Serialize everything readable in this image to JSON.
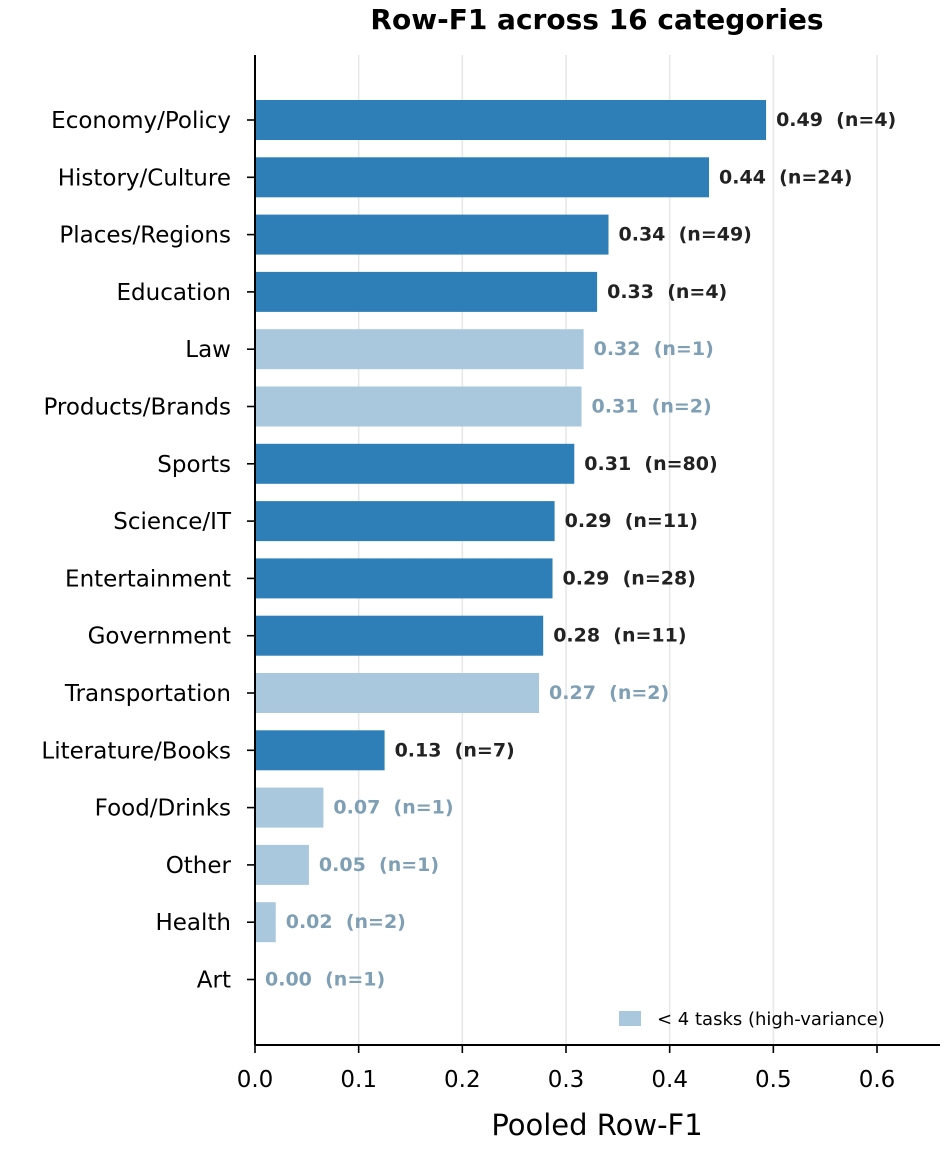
{
  "chart_data": {
    "type": "bar",
    "orientation": "horizontal",
    "title": "Row-F1 across 16 categories",
    "xlabel": "Pooled Row-F1",
    "ylabel": "",
    "xlim": [
      0,
      0.66
    ],
    "xticks": [
      "0.0",
      "0.1",
      "0.2",
      "0.3",
      "0.4",
      "0.5",
      "0.6"
    ],
    "grid": "vertical",
    "legend": {
      "placement": "bottom-right",
      "label": "< 4 tasks (high-variance)"
    },
    "colors": {
      "normal": "#2e7fb8",
      "high_variance": "#a9c8dd",
      "label_normal": "#222222",
      "label_high_variance": "#7f9fb5"
    },
    "categories": [
      "Economy/Policy",
      "History/Culture",
      "Places/Regions",
      "Education",
      "Law",
      "Products/Brands",
      "Sports",
      "Science/IT",
      "Entertainment",
      "Government",
      "Transportation",
      "Literature/Books",
      "Food/Drinks",
      "Other",
      "Health",
      "Art"
    ],
    "values": [
      0.493,
      0.438,
      0.341,
      0.33,
      0.317,
      0.315,
      0.308,
      0.289,
      0.287,
      0.278,
      0.274,
      0.125,
      0.066,
      0.052,
      0.02,
      0.0
    ],
    "n": [
      4,
      24,
      49,
      4,
      1,
      2,
      80,
      11,
      28,
      11,
      2,
      7,
      1,
      1,
      2,
      1
    ],
    "high_variance": [
      false,
      false,
      false,
      false,
      true,
      true,
      false,
      false,
      false,
      false,
      true,
      false,
      true,
      true,
      true,
      true
    ],
    "bar_labels": [
      "0.49  (n=4)",
      "0.44  (n=24)",
      "0.34  (n=49)",
      "0.33  (n=4)",
      "0.32  (n=1)",
      "0.31  (n=2)",
      "0.31  (n=80)",
      "0.29  (n=11)",
      "0.29  (n=28)",
      "0.28  (n=11)",
      "0.27  (n=2)",
      "0.13  (n=7)",
      "0.07  (n=1)",
      "0.05  (n=1)",
      "0.02  (n=2)",
      "0.00  (n=1)"
    ]
  }
}
